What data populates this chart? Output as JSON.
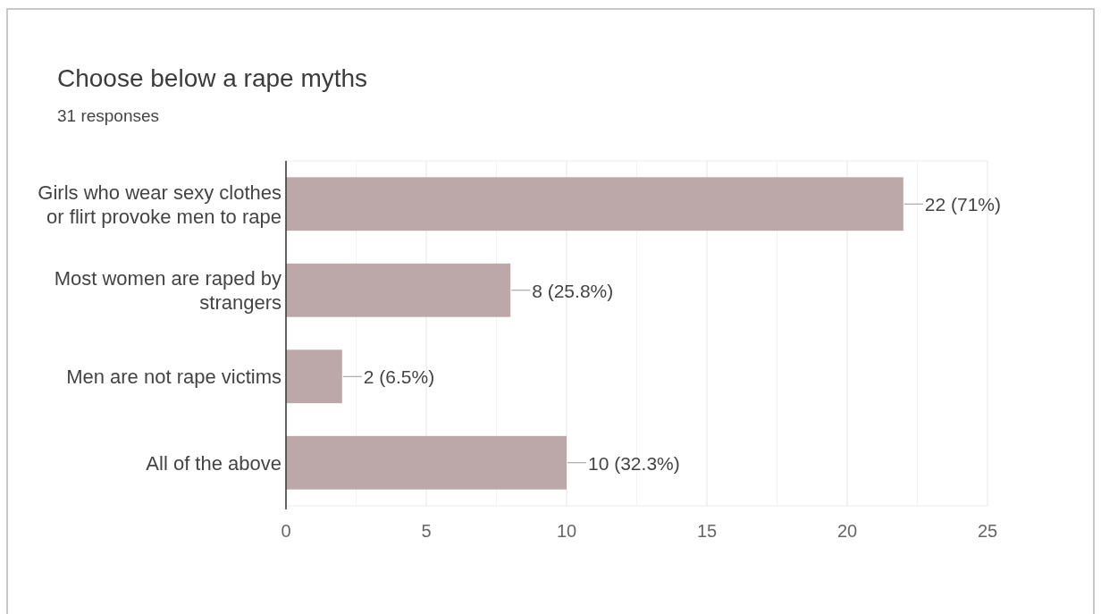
{
  "chart_data": {
    "type": "bar",
    "orientation": "horizontal",
    "title": "Choose below a rape myths",
    "subtitle": "31 responses",
    "categories": [
      "Girls who wear sexy clothes or flirt provoke men to rape",
      "Most women are raped by strangers",
      "Men are not rape victims",
      "All of the above"
    ],
    "values": [
      22,
      8,
      2,
      10
    ],
    "value_labels": [
      "22 (71%)",
      "8 (25.8%)",
      "2 (6.5%)",
      "10 (32.3%)"
    ],
    "color": "#bca8a8",
    "xlim": [
      0,
      25
    ],
    "xticks": [
      0,
      {
        "value": 2.5,
        "label": null
      },
      5,
      {
        "value": 7.5,
        "label": null
      },
      10,
      {
        "value": 12.5,
        "label": null
      },
      15,
      {
        "value": 17.5,
        "label": null
      },
      20,
      {
        "value": 22.5,
        "label": null
      },
      25
    ],
    "grid": "x"
  }
}
